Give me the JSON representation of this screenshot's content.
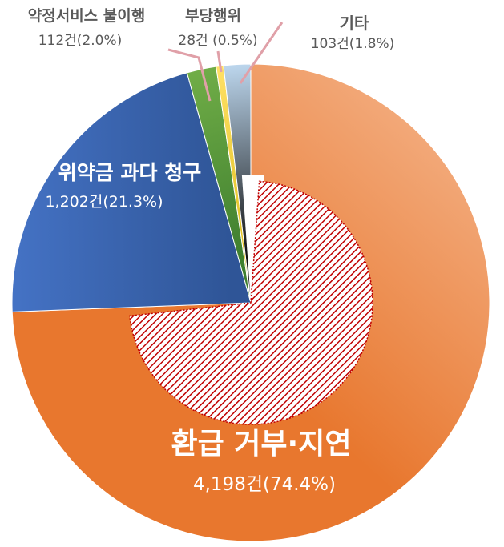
{
  "chart_data": {
    "type": "pie",
    "title": "",
    "slices": [
      {
        "name": "환급 거부·지연",
        "count_label": "4,198건(74.4%)",
        "value": 4198,
        "percent": 74.4,
        "color": "#e8772e",
        "color_light": "#f2a878",
        "label_color": "#ffffff"
      },
      {
        "name": "위약금 과다 청구",
        "count_label": "1,202건(21.3%)",
        "value": 1202,
        "percent": 21.3,
        "color": "#2f5597",
        "color_light": "#4472c4",
        "label_color": "#ffffff"
      },
      {
        "name": "약정서비스 불이행",
        "count_label": "112건(2.0%)",
        "value": 112,
        "percent": 2.0,
        "color": "#3f7f2f",
        "color_light": "#70ad47",
        "label_color": "#595959"
      },
      {
        "name": "부당행위",
        "count_label": "28건 (0.5%)",
        "value": 28,
        "percent": 0.5,
        "color": "#e0c020",
        "color_light": "#ffe066",
        "label_color": "#595959"
      },
      {
        "name": "기타",
        "count_label": "103건(1.8%)",
        "value": 103,
        "percent": 1.8,
        "color": "#111111",
        "color_light": "#bdd7ee",
        "label_color": "#595959"
      }
    ],
    "highlight_slice": "환급 거부·지연",
    "highlight_color": "#c00000",
    "leader_line_color": "#e0a0a8"
  }
}
